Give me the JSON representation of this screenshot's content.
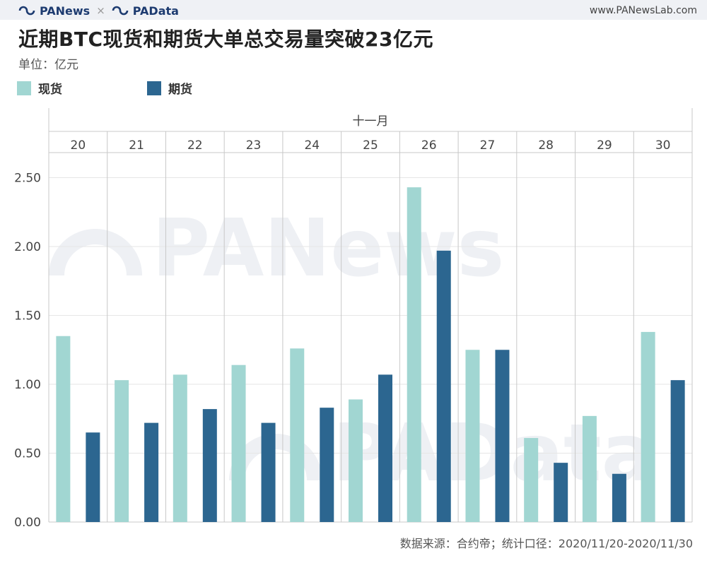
{
  "header": {
    "brand_left": "PANews",
    "separator": "×",
    "brand_right": "PAData",
    "site": "www.PANewsLab.com"
  },
  "title": "近期BTC现货和期货大单总交易量突破23亿元",
  "unit_label": "单位：亿元",
  "watermarks": [
    "PANews",
    "PAData"
  ],
  "source": "数据来源：合约帝；统计口径：2020/11/20-2020/11/30",
  "colors": {
    "spot": "#a1d6d2",
    "futures": "#2c6690",
    "brand": "#1d3b70",
    "grid": "#e6e6e6",
    "axis": "#c8c8c8"
  },
  "chart_data": {
    "type": "bar",
    "month_label": "十一月",
    "categories": [
      "20",
      "21",
      "22",
      "23",
      "24",
      "25",
      "26",
      "27",
      "28",
      "29",
      "30"
    ],
    "series": [
      {
        "name": "现货",
        "values": [
          1.35,
          1.03,
          1.07,
          1.14,
          1.26,
          0.89,
          2.43,
          1.25,
          0.61,
          0.77,
          1.38
        ]
      },
      {
        "name": "期货",
        "values": [
          0.65,
          0.72,
          0.82,
          0.72,
          0.83,
          1.07,
          1.97,
          1.25,
          0.43,
          0.35,
          1.03
        ]
      }
    ],
    "ylim": [
      0,
      2.6
    ],
    "yticks": [
      "0.00",
      "0.50",
      "1.00",
      "1.50",
      "2.00",
      "2.50"
    ],
    "grid": true,
    "legend_position": "top-left"
  }
}
